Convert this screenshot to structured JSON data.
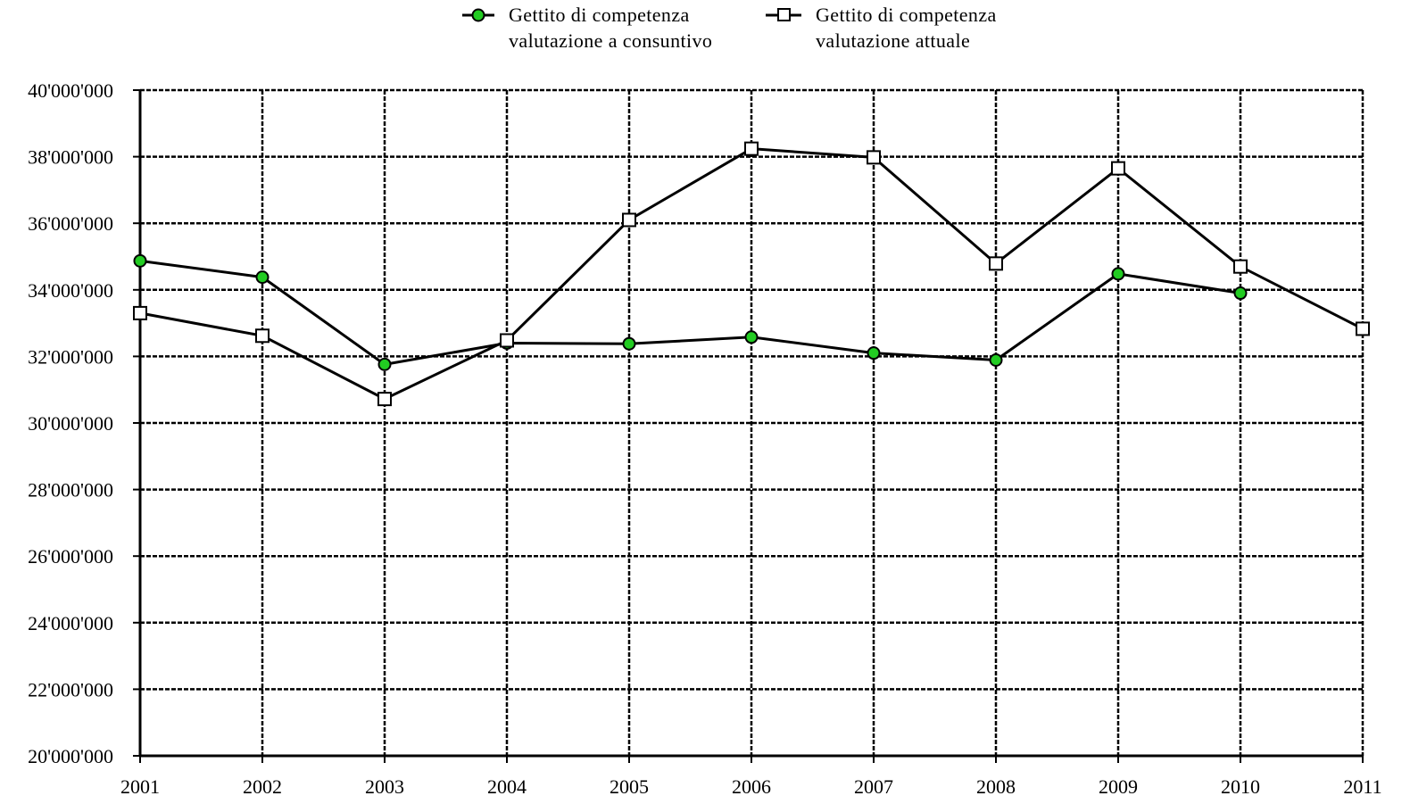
{
  "chart_data": {
    "type": "line",
    "x": [
      "2001",
      "2002",
      "2003",
      "2004",
      "2005",
      "2006",
      "2007",
      "2008",
      "2009",
      "2010",
      "2011"
    ],
    "ylim": [
      20000000,
      40000000
    ],
    "yticks": [
      20000000,
      22000000,
      24000000,
      26000000,
      28000000,
      30000000,
      32000000,
      34000000,
      36000000,
      38000000,
      40000000
    ],
    "ytick_labels": [
      "20'000'000",
      "22'000'000",
      "24'000'000",
      "26'000'000",
      "28'000'000",
      "30'000'000",
      "32'000'000",
      "34'000'000",
      "36'000'000",
      "38'000'000",
      "40'000'000"
    ],
    "grid": true,
    "legend_position": "top-center",
    "series": [
      {
        "name_lines": [
          "Gettito di competenza",
          "valutazione a consuntivo"
        ],
        "marker": "circle",
        "marker_color": "#22cc22",
        "line_color": "#000000",
        "values": [
          34870000,
          34380000,
          31760000,
          32400000,
          32380000,
          32580000,
          32100000,
          31890000,
          34480000,
          33900000,
          null
        ]
      },
      {
        "name_lines": [
          "Gettito di competenza",
          "valutazione attuale"
        ],
        "marker": "square",
        "marker_color": "#ffffff",
        "line_color": "#000000",
        "values": [
          33300000,
          32620000,
          30720000,
          32480000,
          36100000,
          38240000,
          37980000,
          34790000,
          37650000,
          34700000,
          32830000
        ]
      }
    ]
  }
}
